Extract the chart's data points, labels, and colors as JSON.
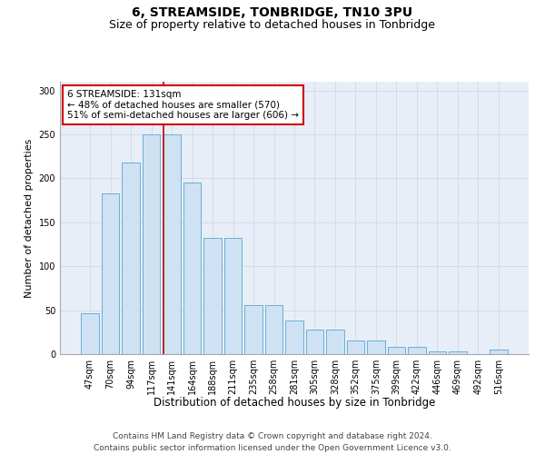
{
  "title": "6, STREAMSIDE, TONBRIDGE, TN10 3PU",
  "subtitle": "Size of property relative to detached houses in Tonbridge",
  "xlabel": "Distribution of detached houses by size in Tonbridge",
  "ylabel": "Number of detached properties",
  "categories": [
    "47sqm",
    "70sqm",
    "94sqm",
    "117sqm",
    "141sqm",
    "164sqm",
    "188sqm",
    "211sqm",
    "235sqm",
    "258sqm",
    "281sqm",
    "305sqm",
    "328sqm",
    "352sqm",
    "375sqm",
    "399sqm",
    "422sqm",
    "446sqm",
    "469sqm",
    "492sqm",
    "516sqm"
  ],
  "values": [
    47,
    183,
    218,
    250,
    250,
    195,
    132,
    132,
    56,
    56,
    38,
    28,
    28,
    15,
    15,
    8,
    8,
    3,
    3,
    0,
    5
  ],
  "bar_color": "#cfe2f3",
  "bar_edge_color": "#6aaed6",
  "grid_color": "#d0d8e8",
  "vline_x": 4.0,
  "vline_color": "#cc0000",
  "annotation_text": "6 STREAMSIDE: 131sqm\n← 48% of detached houses are smaller (570)\n51% of semi-detached houses are larger (606) →",
  "annotation_box_color": "white",
  "annotation_box_edge_color": "#cc0000",
  "footer_text": "Contains HM Land Registry data © Crown copyright and database right 2024.\nContains public sector information licensed under the Open Government Licence v3.0.",
  "title_fontsize": 10,
  "subtitle_fontsize": 9,
  "xlabel_fontsize": 8.5,
  "ylabel_fontsize": 8,
  "tick_fontsize": 7,
  "annotation_fontsize": 7.5,
  "footer_fontsize": 6.5,
  "ylim": [
    0,
    310
  ],
  "yticks": [
    0,
    50,
    100,
    150,
    200,
    250,
    300
  ],
  "plot_bg_color": "#e8eef8"
}
